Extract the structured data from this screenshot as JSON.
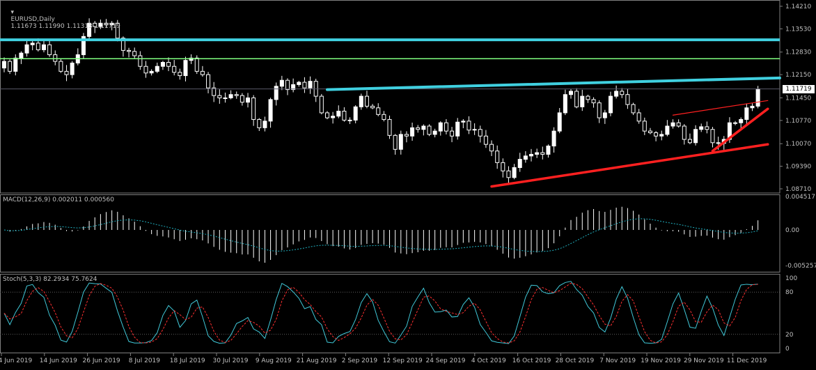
{
  "header": {
    "symbol_label": "EURUSD,Daily",
    "ohlc": "1.11673 1.11990 1.11313 1.11719"
  },
  "price_axis": {
    "ticks": [
      "1.14210",
      "1.13530",
      "1.12830",
      "1.12150",
      "1.11450",
      "1.10770",
      "1.10070",
      "1.09390",
      "1.08710"
    ],
    "current_price_label": "1.11719"
  },
  "macd_panel": {
    "title": "MACD(12,26,9) 0.002011 0.000560",
    "ticks": [
      "0.004517",
      "0.00",
      "-0.005257"
    ]
  },
  "stoch_panel": {
    "title": "Stoch(5,3,3) 82.2934 75.7624",
    "ticks": [
      "100",
      "80",
      "20",
      "0"
    ]
  },
  "time_axis": {
    "labels": [
      "4 Jun 2019",
      "14 Jun 2019",
      "26 Jun 2019",
      "8 Jul 2019",
      "18 Jul 2019",
      "30 Jul 2019",
      "9 Aug 2019",
      "21 Aug 2019",
      "2 Sep 2019",
      "12 Sep 2019",
      "24 Sep 2019",
      "4 Oct 2019",
      "16 Oct 2019",
      "28 Oct 2019",
      "7 Nov 2019",
      "19 Nov 2019",
      "29 Nov 2019",
      "11 Dec 2019"
    ]
  },
  "colors": {
    "background": "#000000",
    "bull_candle": "#ffffff",
    "bear_candle": "#000000",
    "resistance": "#40d0e0",
    "green_level": "#80ff80",
    "trendline": "#ff2020",
    "macd_hist": "#ffffff",
    "macd_signal": "#20b0c0",
    "stoch_main": "#40c8d8",
    "stoch_signal": "#ff3030",
    "grid": "#808080"
  },
  "chart_data": {
    "type": "candlestick",
    "symbol": "EURUSD",
    "timeframe": "Daily",
    "ylim": [
      1.0871,
      1.144
    ],
    "price_levels": [
      {
        "price": 1.132,
        "style": "thick-cyan"
      },
      {
        "price": 1.1263,
        "style": "green"
      },
      {
        "price": 1.1172,
        "style": "thin-grey-current"
      }
    ],
    "trendlines": [
      {
        "color": "cyan",
        "from": {
          "date": "20 Aug 2019",
          "price": 1.117
        },
        "to": {
          "date": "13 Dec 2019",
          "price": 1.1205
        }
      },
      {
        "color": "red",
        "from": {
          "date": "30 Sep 2019",
          "price": 1.0878
        },
        "to": {
          "date": "13 Dec 2019",
          "price": 1.1005
        }
      },
      {
        "color": "red",
        "from": {
          "date": "28 Nov 2019",
          "price": 1.0985
        },
        "to": {
          "date": "13 Dec 2019",
          "price": 1.1112
        }
      },
      {
        "color": "red",
        "from": {
          "date": "20 Nov 2019",
          "price": 1.1093
        },
        "to": {
          "date": "13 Dec 2019",
          "price": 1.1137
        }
      }
    ],
    "closes": [
      1.1255,
      1.1225,
      1.1265,
      1.128,
      1.1305,
      1.131,
      1.129,
      1.1305,
      1.1275,
      1.1255,
      1.1225,
      1.1215,
      1.125,
      1.1275,
      1.133,
      1.137,
      1.136,
      1.137,
      1.1365,
      1.137,
      1.1325,
      1.1288,
      1.1285,
      1.1272,
      1.124,
      1.122,
      1.1225,
      1.124,
      1.1252,
      1.124,
      1.1222,
      1.1212,
      1.1258,
      1.1265,
      1.1225,
      1.1215,
      1.1175,
      1.1152,
      1.1145,
      1.1145,
      1.1155,
      1.1152,
      1.1132,
      1.1145,
      1.108,
      1.1055,
      1.1075,
      1.114,
      1.118,
      1.1198,
      1.117,
      1.1185,
      1.1192,
      1.1175,
      1.1195,
      1.115,
      1.11,
      1.1085,
      1.109,
      1.1105,
      1.1078,
      1.1078,
      1.1118,
      1.115,
      1.112,
      1.1115,
      1.1095,
      1.108,
      1.1032,
      1.099,
      1.1035,
      1.103,
      1.1055,
      1.105,
      1.106,
      1.1035,
      1.1045,
      1.107,
      1.1045,
      1.103,
      1.1072,
      1.1075,
      1.1048,
      1.105,
      1.103,
      1.1005,
      1.0985,
      1.095,
      1.0925,
      1.0905,
      1.0935,
      1.096,
      1.097,
      1.0975,
      1.098,
      1.0975,
      1.1,
      1.1045,
      1.11,
      1.1155,
      1.1165,
      1.1118,
      1.115,
      1.114,
      1.113,
      1.1085,
      1.11,
      1.115,
      1.1165,
      1.1155,
      1.1125,
      1.11,
      1.1075,
      1.1045,
      1.104,
      1.103,
      1.1035,
      1.106,
      1.107,
      1.106,
      1.102,
      1.101,
      1.105,
      1.1058,
      1.105,
      1.101,
      1.1008,
      1.102,
      1.107,
      1.107,
      1.108,
      1.1115,
      1.112,
      1.1172
    ]
  }
}
